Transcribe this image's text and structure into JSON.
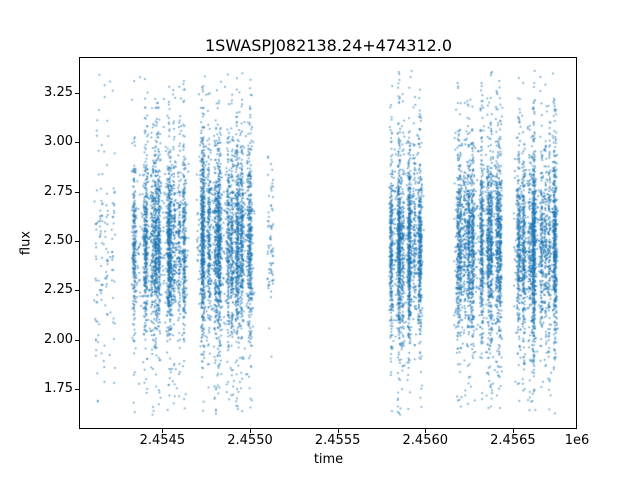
{
  "chart_data": {
    "type": "scatter",
    "title": "1SWASPJ082138.24+474312.0",
    "xlabel": "time",
    "ylabel": "flux",
    "x_offset_text": "1e6",
    "xlim": [
      2454030,
      2456860
    ],
    "ylim": [
      1.555,
      3.425
    ],
    "x_ticks": [
      {
        "value": 2454500,
        "label": "2.4545"
      },
      {
        "value": 2455000,
        "label": "2.4550"
      },
      {
        "value": 2455500,
        "label": "2.4555"
      },
      {
        "value": 2456000,
        "label": "2.4560"
      },
      {
        "value": 2456500,
        "label": "2.4565"
      }
    ],
    "y_ticks": [
      {
        "value": 1.75,
        "label": "1.75"
      },
      {
        "value": 2.0,
        "label": "2.00"
      },
      {
        "value": 2.25,
        "label": "2.25"
      },
      {
        "value": 2.5,
        "label": "2.50"
      },
      {
        "value": 2.75,
        "label": "2.75"
      },
      {
        "value": 3.0,
        "label": "3.00"
      },
      {
        "value": 3.25,
        "label": "3.25"
      }
    ],
    "grid": false,
    "legend": null,
    "marker_color": "#1f77b4",
    "marker_alpha": 0.65,
    "marker_size": 1.7,
    "background_color": "#ffffff",
    "spine_color": "#000000",
    "flux_clip": [
      1.62,
      3.36
    ],
    "seed": 42,
    "clusters": [
      {
        "x_center": 2454170,
        "x_halfwidth": 60,
        "n": 140,
        "stripes": 5,
        "stripe_sigma": 6,
        "uniform_frac": 0.45,
        "flux_mean": 2.45,
        "core_sigma": 0.3,
        "tail_sigma": 0.55,
        "tail_frac": 0.35
      },
      {
        "x_center": 2454500,
        "x_halfwidth": 150,
        "n": 2600,
        "stripes": 12,
        "stripe_sigma": 5,
        "uniform_frac": 0.12,
        "flux_mean": 2.48,
        "core_sigma": 0.2,
        "tail_sigma": 0.4,
        "tail_frac": 0.3
      },
      {
        "x_center": 2454860,
        "x_halfwidth": 165,
        "n": 3200,
        "stripes": 14,
        "stripe_sigma": 5,
        "uniform_frac": 0.12,
        "flux_mean": 2.5,
        "core_sigma": 0.21,
        "tail_sigma": 0.43,
        "tail_frac": 0.32
      },
      {
        "x_center": 2455115,
        "x_halfwidth": 18,
        "n": 70,
        "stripes": 2,
        "stripe_sigma": 4,
        "uniform_frac": 0.3,
        "flux_mean": 2.48,
        "core_sigma": 0.18,
        "tail_sigma": 0.3,
        "tail_frac": 0.25
      },
      {
        "x_center": 2455895,
        "x_halfwidth": 90,
        "n": 2100,
        "stripes": 9,
        "stripe_sigma": 5,
        "uniform_frac": 0.1,
        "flux_mean": 2.47,
        "core_sigma": 0.2,
        "tail_sigma": 0.42,
        "tail_frac": 0.3
      },
      {
        "x_center": 2456295,
        "x_halfwidth": 130,
        "n": 2700,
        "stripes": 12,
        "stripe_sigma": 5,
        "uniform_frac": 0.12,
        "flux_mean": 2.48,
        "core_sigma": 0.21,
        "tail_sigma": 0.42,
        "tail_frac": 0.3
      },
      {
        "x_center": 2456630,
        "x_halfwidth": 125,
        "n": 2500,
        "stripes": 11,
        "stripe_sigma": 5,
        "uniform_frac": 0.12,
        "flux_mean": 2.47,
        "core_sigma": 0.21,
        "tail_sigma": 0.42,
        "tail_frac": 0.3
      }
    ]
  }
}
